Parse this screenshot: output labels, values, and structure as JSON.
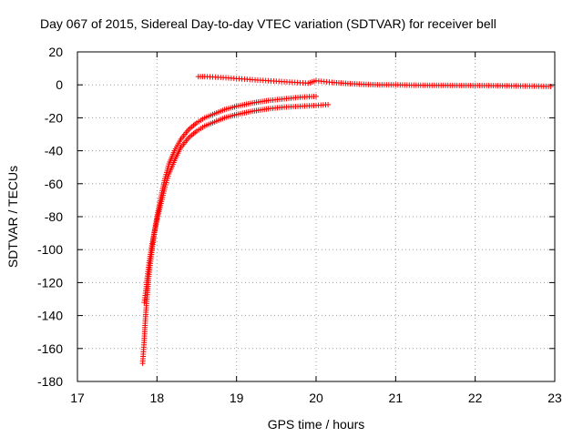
{
  "chart_data": {
    "type": "scatter",
    "title": "Day 067 of 2015, Sidereal Day-to-day VTEC variation (SDTVAR) for receiver bell",
    "xlabel": "GPS time / hours",
    "ylabel": "SDTVAR / TECUs",
    "xlim": [
      17,
      23
    ],
    "ylim": [
      -180,
      20
    ],
    "xticks": [
      17,
      18,
      19,
      20,
      21,
      22,
      23
    ],
    "yticks": [
      -180,
      -160,
      -140,
      -120,
      -100,
      -80,
      -60,
      -40,
      -20,
      0,
      20
    ],
    "grid": true,
    "legend": "none",
    "marker": "plus",
    "color": "#ff0000",
    "series": [
      {
        "x": [
          17.82,
          17.83,
          17.84,
          17.85,
          17.86,
          17.88,
          17.9,
          17.93,
          17.96,
          18.0,
          18.05,
          18.1,
          18.15,
          18.22,
          18.3,
          18.4,
          18.5,
          18.6,
          18.7,
          18.85,
          19.0,
          19.2,
          19.4,
          19.6,
          19.8,
          20.0
        ],
        "y": [
          -169,
          -162,
          -155,
          -146,
          -138,
          -126,
          -115,
          -103,
          -92,
          -80,
          -68,
          -57,
          -48,
          -40,
          -33,
          -27,
          -23,
          -20,
          -18,
          -15,
          -13,
          -11,
          -9.5,
          -8.5,
          -7.5,
          -7
        ]
      },
      {
        "x": [
          17.84,
          17.86,
          17.88,
          17.9,
          17.93,
          17.96,
          18.0,
          18.05,
          18.1,
          18.15,
          18.22,
          18.3,
          18.4,
          18.5,
          18.6,
          18.7,
          18.85,
          19.0,
          19.2,
          19.4,
          19.6,
          19.8,
          20.0,
          20.15
        ],
        "y": [
          -132,
          -125,
          -116,
          -108,
          -99,
          -91,
          -82,
          -72,
          -62,
          -54,
          -46,
          -38,
          -32,
          -28,
          -25,
          -23,
          -20,
          -18,
          -16,
          -14.5,
          -13.5,
          -13,
          -12.5,
          -12
        ]
      },
      {
        "x": [
          18.52,
          18.6,
          18.7,
          18.8,
          18.9,
          19.0,
          19.1,
          19.2,
          19.3,
          19.4,
          19.5,
          19.6,
          19.7,
          19.8,
          19.9,
          20.0,
          20.1,
          20.2,
          20.4,
          20.6,
          20.8,
          21.0,
          21.2,
          21.4,
          21.6,
          21.8,
          22.0,
          22.2,
          22.4,
          22.6,
          22.8,
          22.95
        ],
        "y": [
          5,
          5,
          4.8,
          4.5,
          4.2,
          3.8,
          3.5,
          3.1,
          2.8,
          2.5,
          2.2,
          1.9,
          1.6,
          1.3,
          1.0,
          2.5,
          2.0,
          1.5,
          0.8,
          0.3,
          0,
          0,
          -0.2,
          -0.3,
          -0.3,
          -0.4,
          -0.4,
          -0.5,
          -0.6,
          -0.7,
          -0.8,
          -1
        ]
      }
    ]
  }
}
